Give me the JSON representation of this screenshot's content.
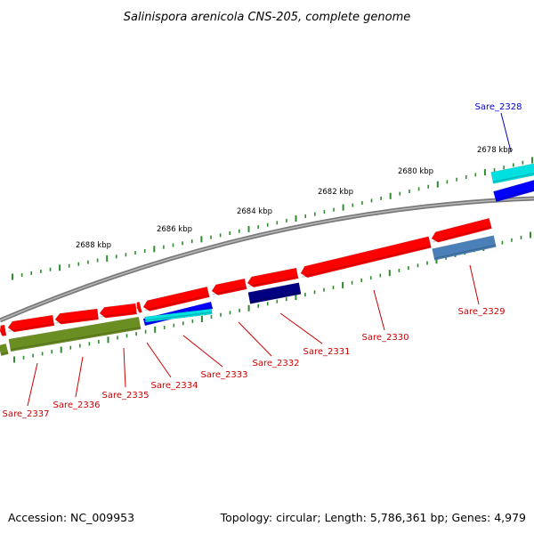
{
  "title": "Salinispora arenicola CNS-205, complete genome",
  "footer": {
    "accession": "Accession: NC_009953",
    "summary": "Topology: circular; Length: 5,786,361 bp; Genes: 4,979"
  },
  "colors": {
    "backbone": "#808080",
    "ticks": "#2e8b2e",
    "tick_labels": "#000000",
    "label_default": "#cc0000",
    "label_highlight": "#0000cc",
    "leader_default": "#cc0000",
    "leader_highlight": "#0000cc",
    "gene_red": "#ff0000",
    "gene_blue": "#0000ff",
    "gene_cyan": "#00e0e0",
    "gene_navy": "#000080",
    "gene_steelblue": "#4a7fb8",
    "gene_olive": "#6b8e23"
  },
  "tick_labels": [
    "2678 kbp",
    "2680 kbp",
    "2682 kbp",
    "2684 kbp",
    "2686 kbp",
    "2688 kbp"
  ],
  "gene_labels": [
    {
      "text": "Sare_2328",
      "highlight": true
    },
    {
      "text": "Sare_2329",
      "highlight": false
    },
    {
      "text": "Sare_2330",
      "highlight": false
    },
    {
      "text": "Sare_2331",
      "highlight": false
    },
    {
      "text": "Sare_2332",
      "highlight": false
    },
    {
      "text": "Sare_2333",
      "highlight": false
    },
    {
      "text": "Sare_2334",
      "highlight": false
    },
    {
      "text": "Sare_2335",
      "highlight": false
    },
    {
      "text": "Sare_2336",
      "highlight": false
    },
    {
      "text": "Sare_2337",
      "highlight": false
    }
  ]
}
